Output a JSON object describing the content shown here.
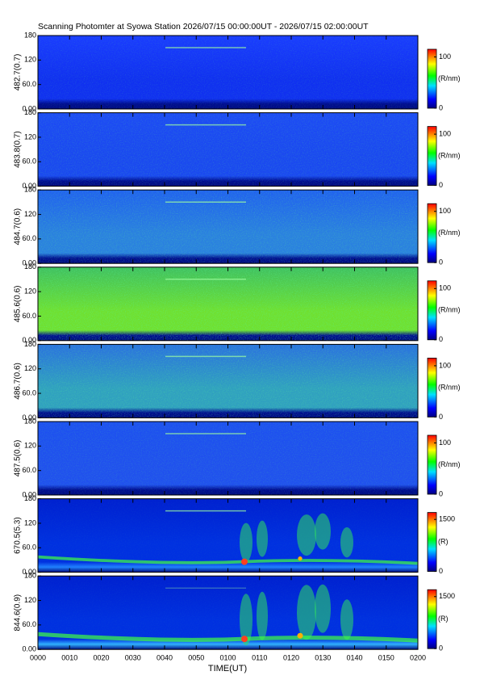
{
  "title": "Scanning Photomter at Syowa Station 2026/07/15 00:00:00UT - 2026/07/15 02:00:00UT",
  "x_axis": {
    "label": "TIME(UT)",
    "xlim": [
      0,
      120
    ],
    "xticks": [
      {
        "value": 0,
        "label": "0000"
      },
      {
        "value": 10,
        "label": "0010"
      },
      {
        "value": 20,
        "label": "0020"
      },
      {
        "value": 30,
        "label": "0030"
      },
      {
        "value": 40,
        "label": "0040"
      },
      {
        "value": 50,
        "label": "0050"
      },
      {
        "value": 60,
        "label": "0100"
      },
      {
        "value": 70,
        "label": "0110"
      },
      {
        "value": 80,
        "label": "0120"
      },
      {
        "value": 90,
        "label": "0130"
      },
      {
        "value": 100,
        "label": "0140"
      },
      {
        "value": 110,
        "label": "0150"
      },
      {
        "value": 120,
        "label": "0200"
      }
    ]
  },
  "panels": [
    {
      "ylabel": "482.7(0.7)",
      "ylim": [
        0,
        180
      ],
      "yticks": [
        {
          "value": 0,
          "label": "0.00"
        },
        {
          "value": 60,
          "label": "60.0"
        },
        120,
        180
      ],
      "colorbar": {
        "unit": "(R/nm)",
        "clim": [
          0,
          115
        ],
        "ticks": [
          0,
          100
        ]
      }
    },
    {
      "ylabel": "483.8(0.7)",
      "ylim": [
        0,
        180
      ],
      "yticks": [
        {
          "value": 0,
          "label": "0.00"
        },
        {
          "value": 60,
          "label": "60.0"
        },
        120,
        180
      ],
      "colorbar": {
        "unit": "(R/nm)",
        "clim": [
          0,
          115
        ],
        "ticks": [
          0,
          100
        ]
      }
    },
    {
      "ylabel": "484.7(0.6)",
      "ylim": [
        0,
        180
      ],
      "yticks": [
        {
          "value": 0,
          "label": "0.00"
        },
        {
          "value": 60,
          "label": "60.0"
        },
        120,
        180
      ],
      "colorbar": {
        "unit": "(R/nm)",
        "clim": [
          0,
          115
        ],
        "ticks": [
          0,
          100
        ]
      }
    },
    {
      "ylabel": "485.6(0.6)",
      "ylim": [
        0,
        180
      ],
      "yticks": [
        {
          "value": 0,
          "label": "0.00"
        },
        {
          "value": 60,
          "label": "60.0"
        },
        120,
        180
      ],
      "colorbar": {
        "unit": "(R/nm)",
        "clim": [
          0,
          115
        ],
        "ticks": [
          0,
          100
        ]
      }
    },
    {
      "ylabel": "486.7(0.6)",
      "ylim": [
        0,
        180
      ],
      "yticks": [
        {
          "value": 0,
          "label": "0.00"
        },
        {
          "value": 60,
          "label": "60.0"
        },
        120,
        180
      ],
      "colorbar": {
        "unit": "(R/nm)",
        "clim": [
          0,
          115
        ],
        "ticks": [
          0,
          100
        ]
      }
    },
    {
      "ylabel": "487.5(0.6)",
      "ylim": [
        0,
        180
      ],
      "yticks": [
        {
          "value": 0,
          "label": "0.00"
        },
        {
          "value": 60,
          "label": "60.0"
        },
        120,
        180
      ],
      "colorbar": {
        "unit": "(R/nm)",
        "clim": [
          0,
          115
        ],
        "ticks": [
          0,
          100
        ]
      }
    },
    {
      "ylabel": "670.5(5.3)",
      "ylim": [
        0,
        180
      ],
      "yticks": [
        {
          "value": 0,
          "label": "0.00"
        },
        {
          "value": 60,
          "label": "60.0"
        },
        120,
        180
      ],
      "colorbar": {
        "unit": "(R)",
        "clim": [
          0,
          1700
        ],
        "ticks": [
          0,
          1500
        ]
      }
    },
    {
      "ylabel": "844.6(0.9)",
      "ylim": [
        0,
        180
      ],
      "yticks": [
        {
          "value": 0,
          "label": "0.00"
        },
        {
          "value": 60,
          "label": "60.0"
        },
        120,
        180
      ],
      "colorbar": {
        "unit": "(R)",
        "clim": [
          0,
          1700
        ],
        "ticks": [
          0,
          1500
        ]
      }
    }
  ]
}
